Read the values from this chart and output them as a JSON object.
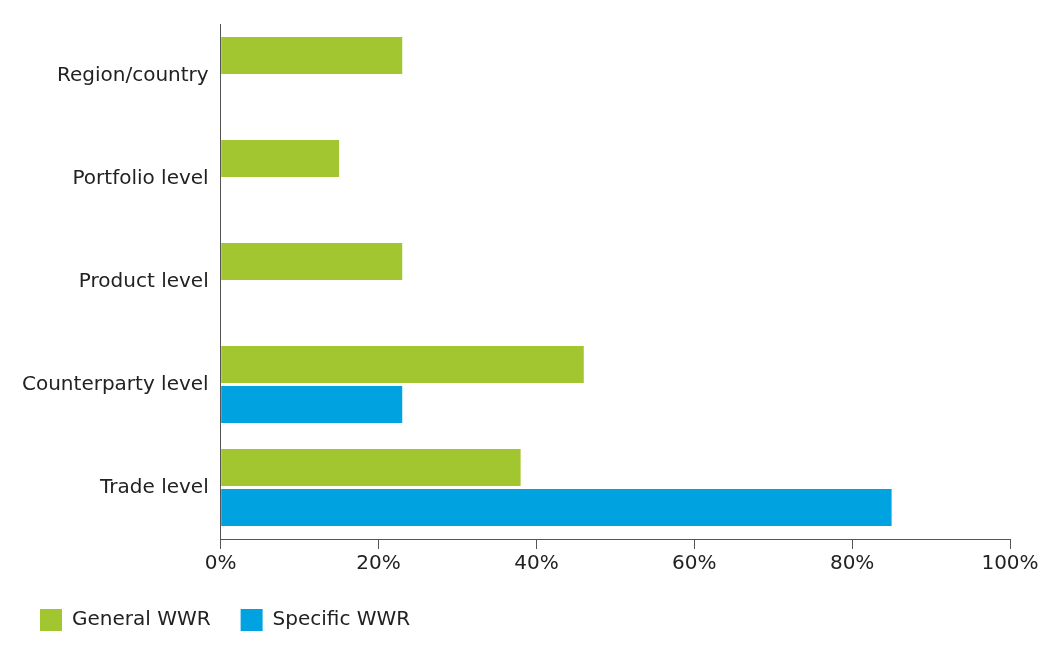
{
  "chart_data": {
    "type": "bar",
    "orientation": "horizontal",
    "categories": [
      "Region/country",
      "Portfolio level",
      "Product level",
      "Counterparty level",
      "Trade level"
    ],
    "series": [
      {
        "name": "General WWR",
        "color": "#a2c62f",
        "values": [
          23,
          15,
          23,
          46,
          38
        ]
      },
      {
        "name": "Specific WWR",
        "color": "#00a3e0",
        "values": [
          null,
          null,
          null,
          23,
          85
        ]
      }
    ],
    "xlim": [
      0,
      100
    ],
    "xticks": [
      {
        "value": 0,
        "label": "0%"
      },
      {
        "value": 20,
        "label": "20%"
      },
      {
        "value": 40,
        "label": "40%"
      },
      {
        "value": 60,
        "label": "60%"
      },
      {
        "value": 80,
        "label": "80%"
      },
      {
        "value": 100,
        "label": "100%"
      }
    ],
    "grid": false,
    "legend": "bottom"
  }
}
